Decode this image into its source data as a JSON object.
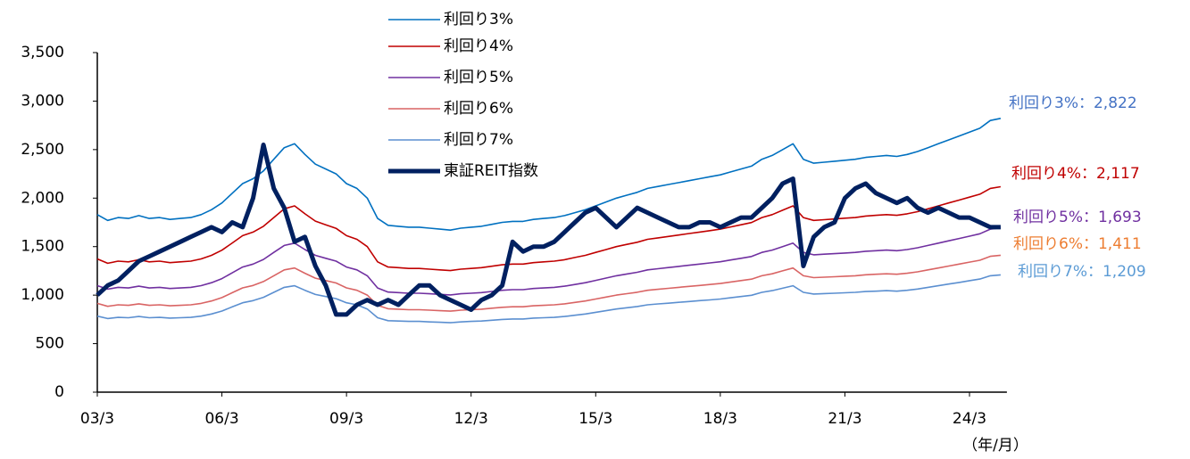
{
  "chart_data": {
    "type": "line",
    "categories": [
      "03/3",
      null,
      null,
      null,
      null,
      null,
      null,
      null,
      null,
      null,
      null,
      null,
      "06/3",
      null,
      null,
      null,
      null,
      null,
      null,
      null,
      null,
      null,
      null,
      null,
      "09/3",
      null,
      null,
      null,
      null,
      null,
      null,
      null,
      null,
      null,
      null,
      null,
      "12/3",
      null,
      null,
      null,
      null,
      null,
      null,
      null,
      null,
      null,
      null,
      null,
      "15/3",
      null,
      null,
      null,
      null,
      null,
      null,
      null,
      null,
      null,
      null,
      null,
      "18/3",
      null,
      null,
      null,
      null,
      null,
      null,
      null,
      null,
      null,
      null,
      null,
      "21/3",
      null,
      null,
      null,
      null,
      null,
      null,
      null,
      null,
      null,
      null,
      null,
      "24/3",
      null,
      null,
      null
    ],
    "x_label": "（年/月）",
    "ylim": [
      0,
      3500
    ],
    "yticks": [
      0,
      500,
      {
        "value": 1000,
        "label": "1,000"
      },
      {
        "value": 1500,
        "label": "1,500"
      },
      {
        "value": 2000,
        "label": "2,000"
      },
      {
        "value": 2500,
        "label": "2,500"
      },
      {
        "value": 3000,
        "label": "3,000"
      },
      {
        "value": 3500,
        "label": "3,500"
      }
    ],
    "grid": false,
    "series": [
      {
        "name": "利回り3%",
        "color": "#0070c0",
        "width": 1.6,
        "values": [
          1830,
          1770,
          1800,
          1790,
          1820,
          1790,
          1800,
          1780,
          1790,
          1800,
          1830,
          1880,
          1950,
          2050,
          2150,
          2200,
          2280,
          2400,
          2520,
          2560,
          2450,
          2350,
          2300,
          2250,
          2150,
          2100,
          2000,
          1790,
          1720,
          1710,
          1700,
          1700,
          1690,
          1680,
          1670,
          1690,
          1700,
          1710,
          1730,
          1750,
          1760,
          1760,
          1780,
          1790,
          1800,
          1820,
          1850,
          1880,
          1920,
          1960,
          2000,
          2030,
          2060,
          2100,
          2120,
          2140,
          2160,
          2180,
          2200,
          2220,
          2240,
          2270,
          2300,
          2330,
          2400,
          2440,
          2500,
          2560,
          2400,
          2360,
          2370,
          2380,
          2390,
          2400,
          2420,
          2430,
          2440,
          2430,
          2450,
          2480,
          2520,
          2560,
          2600,
          2640,
          2680,
          2720,
          2800,
          2822
        ]
      },
      {
        "name": "利回り4%",
        "color": "#c00000",
        "width": 1.6,
        "values": [
          1373,
          1328,
          1350,
          1343,
          1365,
          1343,
          1350,
          1335,
          1343,
          1350,
          1373,
          1410,
          1463,
          1538,
          1613,
          1650,
          1710,
          1800,
          1890,
          1920,
          1838,
          1763,
          1725,
          1688,
          1613,
          1575,
          1500,
          1343,
          1290,
          1283,
          1275,
          1275,
          1268,
          1260,
          1253,
          1268,
          1275,
          1283,
          1298,
          1313,
          1320,
          1320,
          1335,
          1343,
          1350,
          1365,
          1388,
          1410,
          1440,
          1470,
          1500,
          1523,
          1545,
          1575,
          1590,
          1605,
          1620,
          1635,
          1650,
          1665,
          1680,
          1703,
          1725,
          1748,
          1800,
          1830,
          1875,
          1920,
          1800,
          1770,
          1778,
          1785,
          1793,
          1800,
          1815,
          1823,
          1830,
          1823,
          1838,
          1860,
          1890,
          1920,
          1950,
          1980,
          2010,
          2040,
          2100,
          2117
        ]
      },
      {
        "name": "利回り5%",
        "color": "#7030a0",
        "width": 1.6,
        "values": [
          1098,
          1062,
          1080,
          1074,
          1092,
          1074,
          1080,
          1068,
          1074,
          1080,
          1098,
          1128,
          1170,
          1230,
          1290,
          1320,
          1368,
          1440,
          1512,
          1536,
          1470,
          1410,
          1380,
          1350,
          1290,
          1260,
          1200,
          1074,
          1032,
          1026,
          1020,
          1020,
          1014,
          1008,
          1002,
          1014,
          1020,
          1026,
          1038,
          1050,
          1056,
          1056,
          1068,
          1074,
          1080,
          1092,
          1110,
          1128,
          1152,
          1176,
          1200,
          1218,
          1236,
          1260,
          1272,
          1284,
          1296,
          1308,
          1320,
          1332,
          1344,
          1362,
          1380,
          1398,
          1440,
          1464,
          1500,
          1536,
          1440,
          1416,
          1422,
          1428,
          1434,
          1440,
          1452,
          1458,
          1464,
          1458,
          1470,
          1488,
          1512,
          1536,
          1560,
          1584,
          1608,
          1632,
          1680,
          1693
        ]
      },
      {
        "name": "利回り6%",
        "color": "#d96464",
        "width": 1.6,
        "values": [
          915,
          885,
          900,
          895,
          910,
          895,
          900,
          890,
          895,
          900,
          915,
          940,
          975,
          1025,
          1075,
          1100,
          1140,
          1200,
          1260,
          1280,
          1225,
          1175,
          1150,
          1125,
          1075,
          1050,
          1000,
          895,
          860,
          855,
          850,
          850,
          845,
          840,
          835,
          845,
          850,
          855,
          865,
          875,
          880,
          880,
          890,
          895,
          900,
          910,
          925,
          940,
          960,
          980,
          1000,
          1015,
          1030,
          1050,
          1060,
          1070,
          1080,
          1090,
          1100,
          1110,
          1120,
          1135,
          1150,
          1165,
          1200,
          1220,
          1250,
          1280,
          1200,
          1180,
          1185,
          1190,
          1195,
          1200,
          1210,
          1215,
          1220,
          1215,
          1225,
          1240,
          1260,
          1280,
          1300,
          1320,
          1340,
          1360,
          1400,
          1411
        ]
      },
      {
        "name": "利回り7%",
        "color": "#5b8fd0",
        "width": 1.6,
        "values": [
          784,
          759,
          771,
          767,
          780,
          767,
          771,
          763,
          767,
          771,
          784,
          806,
          836,
          879,
          921,
          943,
          977,
          1029,
          1080,
          1097,
          1050,
          1007,
          986,
          964,
          921,
          900,
          857,
          767,
          737,
          733,
          729,
          729,
          724,
          720,
          716,
          724,
          729,
          733,
          741,
          750,
          754,
          754,
          763,
          767,
          771,
          780,
          793,
          806,
          823,
          840,
          857,
          870,
          883,
          900,
          909,
          917,
          926,
          934,
          943,
          951,
          960,
          973,
          986,
          999,
          1029,
          1046,
          1071,
          1097,
          1029,
          1011,
          1016,
          1020,
          1024,
          1029,
          1037,
          1041,
          1046,
          1041,
          1050,
          1063,
          1080,
          1097,
          1114,
          1131,
          1149,
          1166,
          1200,
          1209
        ]
      },
      {
        "name": "東証REIT指数",
        "color": "#002060",
        "width": 5,
        "values": [
          1000,
          1100,
          1150,
          1250,
          1350,
          1400,
          1450,
          1500,
          1550,
          1600,
          1650,
          1700,
          1650,
          1750,
          1700,
          2000,
          2550,
          2100,
          1900,
          1550,
          1600,
          1300,
          1100,
          800,
          800,
          900,
          950,
          900,
          950,
          900,
          1000,
          1100,
          1100,
          1000,
          950,
          900,
          850,
          950,
          1000,
          1100,
          1550,
          1450,
          1500,
          1500,
          1550,
          1650,
          1750,
          1850,
          1900,
          1800,
          1700,
          1800,
          1900,
          1850,
          1800,
          1750,
          1700,
          1700,
          1750,
          1750,
          1700,
          1750,
          1800,
          1800,
          1900,
          2000,
          2150,
          2200,
          1300,
          1600,
          1700,
          1750,
          2000,
          2100,
          2150,
          2050,
          2000,
          1950,
          2000,
          1900,
          1850,
          1900,
          1850,
          1800,
          1800,
          1750,
          1700,
          1700
        ]
      }
    ],
    "annotations": [
      {
        "text": "利回り3%：2,822",
        "color": "#4472c4"
      },
      {
        "text": "利回り4%：2,117",
        "color": "#c00000"
      },
      {
        "text": "利回り5%：1,693",
        "color": "#7030a0"
      },
      {
        "text": "利回り6%：1,411",
        "color": "#ed7d31"
      },
      {
        "text": "利回り7%：1,209",
        "color": "#5b9bd5"
      }
    ]
  }
}
